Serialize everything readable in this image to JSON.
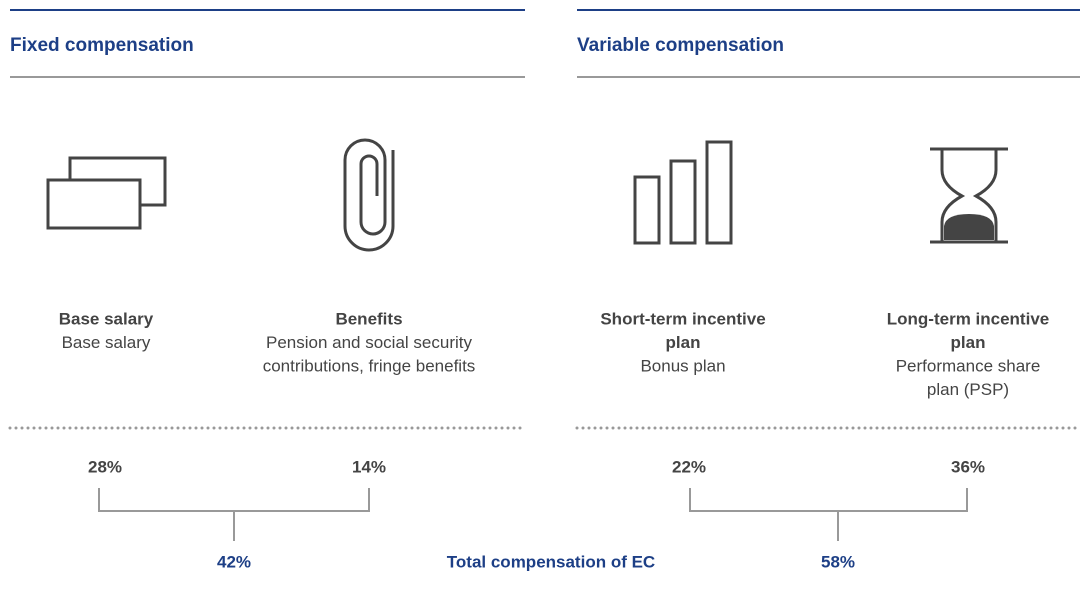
{
  "sections": [
    {
      "title": "Fixed compensation",
      "subtotal": "42%",
      "items": [
        {
          "title": [
            "Base salary"
          ],
          "description": [
            "Base salary"
          ],
          "share": "28%"
        },
        {
          "title": [
            "Benefits"
          ],
          "description": [
            "Pension and social security",
            "contributions, fringe benefits"
          ],
          "share": "14%"
        }
      ]
    },
    {
      "title": "Variable compensation",
      "subtotal": "58%",
      "items": [
        {
          "title": [
            "Short-term incentive",
            "plan"
          ],
          "description": [
            "Bonus plan"
          ],
          "share": "22%"
        },
        {
          "title": [
            "Long-term incentive",
            "plan"
          ],
          "description": [
            "Performance share",
            "plan (PSP)"
          ],
          "share": "36%"
        }
      ]
    }
  ],
  "footer": {
    "label": "Total compensation of EC"
  }
}
